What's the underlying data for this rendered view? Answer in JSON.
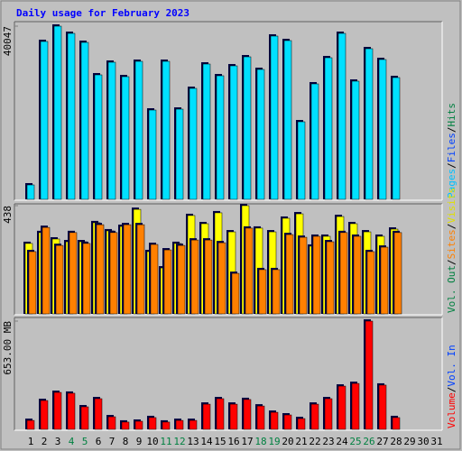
{
  "chart_data": {
    "type": "bar",
    "title": "Daily usage for February 2023",
    "categories": [
      "1",
      "2",
      "3",
      "4",
      "5",
      "6",
      "7",
      "8",
      "9",
      "10",
      "11",
      "12",
      "13",
      "14",
      "15",
      "16",
      "17",
      "18",
      "19",
      "20",
      "21",
      "22",
      "23",
      "24",
      "25",
      "26",
      "27",
      "28",
      "29",
      "30",
      "31"
    ],
    "category_colors": [
      "#000000",
      "#000000",
      "#000000",
      "#008040",
      "#008040",
      "#000000",
      "#000000",
      "#000000",
      "#000000",
      "#000000",
      "#008040",
      "#008040",
      "#000000",
      "#000000",
      "#000000",
      "#000000",
      "#000000",
      "#008040",
      "#008040",
      "#000000",
      "#000000",
      "#000000",
      "#000000",
      "#000000",
      "#008040",
      "#008040",
      "#000000",
      "#000000",
      "#000000",
      "#000000",
      "#000000"
    ],
    "panels": [
      {
        "ylim": [
          0,
          40047
        ],
        "yticks": [
          40047
        ],
        "side_label": [
          {
            "text": "Pages",
            "color": "#00c0ff"
          },
          {
            "text": "/",
            "color": "#000000"
          },
          {
            "text": "Files",
            "color": "#0040ff"
          },
          {
            "text": "/",
            "color": "#000000"
          },
          {
            "text": "Hits",
            "color": "#008040"
          }
        ],
        "series": [
          {
            "color": "#00e0ff",
            "values": [
              3338,
              36505,
              40047,
              38378,
              36292,
              28785,
              31705,
              28367,
              31913,
              20650,
              31913,
              20858,
              25656,
              31288,
              28576,
              30871,
              32956,
              30036,
              37754,
              36711,
              17938,
              26699,
              32748,
              38379,
              27325,
              34834,
              32331,
              28159,
              null,
              null,
              null
            ]
          }
        ]
      },
      {
        "ylim": [
          0,
          438
        ],
        "yticks": [
          438
        ],
        "side_label": [
          {
            "text": "Vol. Out",
            "color": "#008040"
          },
          {
            "text": "/",
            "color": "#000000"
          },
          {
            "text": "Sites",
            "color": "#ff8000"
          },
          {
            "text": "/",
            "color": "#000000"
          },
          {
            "text": "Visits",
            "color": "#e0e000"
          }
        ],
        "series": [
          {
            "color": "#ffff00",
            "values": [
              285,
              329,
              303,
              292,
              292,
              369,
              336,
              354,
              423,
              252,
              186,
              285,
              398,
              365,
              409,
              332,
              438,
              347,
              332,
              387,
              405,
              274,
              314,
              394,
              365,
              332,
              314,
              343,
              null,
              null,
              null
            ]
          },
          {
            "color": "#ff8000",
            "values": [
              252,
              350,
              277,
              329,
              285,
              361,
              329,
              361,
              361,
              281,
              259,
              277,
              299,
              299,
              288,
              164,
              347,
              179,
              179,
              321,
              310,
              314,
              292,
              329,
              314,
              252,
              270,
              329,
              null,
              null,
              null
            ]
          }
        ]
      },
      {
        "ylim": [
          0,
          653
        ],
        "yticks": [
          {
            "value": 653,
            "label": "653.00 MB"
          }
        ],
        "side_label": [
          {
            "text": "Volume",
            "color": "#ff0000"
          },
          {
            "text": "/",
            "color": "#000000"
          },
          {
            "text": "Vol. In",
            "color": "#0040ff"
          }
        ],
        "series": [
          {
            "color": "#ff0000",
            "values": [
              54,
              174,
              223,
              218,
              136,
              185,
              76,
              44,
              49,
              71,
              44,
              54,
              54,
              152,
              185,
              152,
              180,
              141,
              103,
              87,
              65,
              152,
              185,
              261,
              277,
              653,
              267,
              71,
              null,
              null,
              null
            ]
          }
        ]
      }
    ]
  }
}
